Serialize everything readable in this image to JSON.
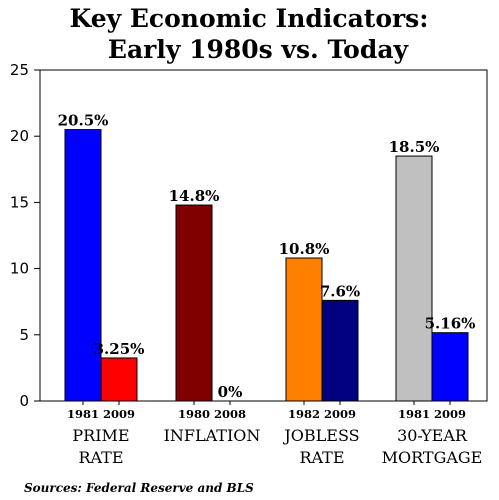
{
  "chart_data": {
    "type": "bar",
    "title_lines": [
      "Key Economic Indicators:",
      "Early 1980s vs. Today"
    ],
    "ylim": [
      0,
      25
    ],
    "yticks": [
      "0",
      "5",
      "10",
      "15",
      "20",
      "25"
    ],
    "grid": false,
    "groups": [
      {
        "label_lines": [
          "PRIME",
          "RATE"
        ],
        "bars": [
          {
            "year": "1981",
            "value": 20.5,
            "value_label": "20.5%",
            "color": "#0000ff"
          },
          {
            "year": "2009",
            "value": 3.25,
            "value_label": "3.25%",
            "color": "#ff0000"
          }
        ]
      },
      {
        "label_lines": [
          "INFLATION"
        ],
        "bars": [
          {
            "year": "1980",
            "value": 14.8,
            "value_label": "14.8%",
            "color": "#800000"
          },
          {
            "year": "2008",
            "value": 0,
            "value_label": "0%",
            "color": "#800000"
          }
        ]
      },
      {
        "label_lines": [
          "JOBLESS",
          "RATE"
        ],
        "bars": [
          {
            "year": "1982",
            "value": 10.8,
            "value_label": "10.8%",
            "color": "#ff8000"
          },
          {
            "year": "2009",
            "value": 7.6,
            "value_label": "7.6%",
            "color": "#000080"
          }
        ]
      },
      {
        "label_lines": [
          "30-YEAR",
          "MORTGAGE"
        ],
        "bars": [
          {
            "year": "1981",
            "value": 18.5,
            "value_label": "18.5%",
            "color": "#c0c0c0"
          },
          {
            "year": "2009",
            "value": 5.16,
            "value_label": "5.16%",
            "color": "#0000ff"
          }
        ]
      }
    ],
    "source": "Sources: Federal Reserve and BLS"
  }
}
